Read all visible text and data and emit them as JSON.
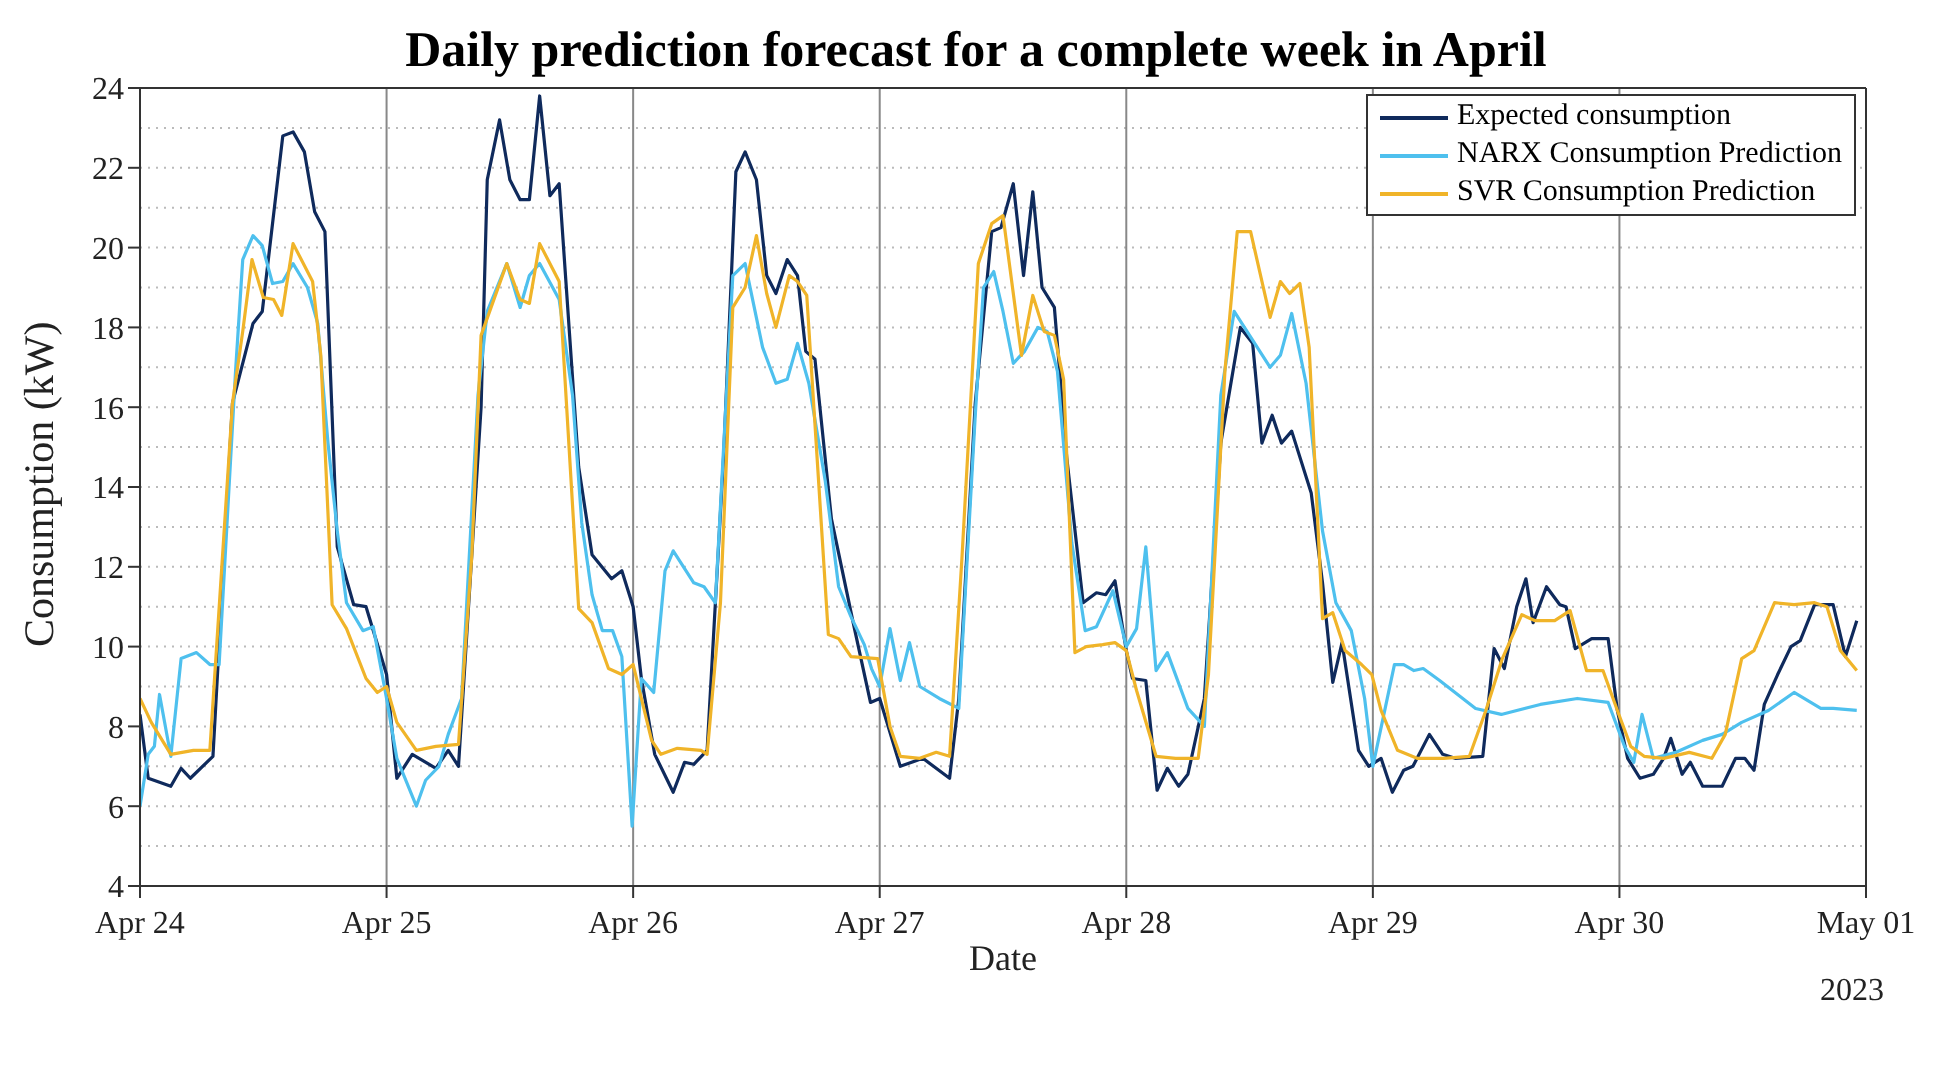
{
  "chart_data": {
    "type": "line",
    "title": "Daily prediction forecast for a complete week in April",
    "xlabel": "Date",
    "ylabel": "Consumption (kW)",
    "annotations": [
      "2023"
    ],
    "xlim": [
      "2023-04-24",
      "2023-05-01"
    ],
    "xticks": [
      {
        "value": "2023-04-24",
        "label": "Apr 24"
      },
      {
        "value": "2023-04-25",
        "label": "Apr 25"
      },
      {
        "value": "2023-04-26",
        "label": "Apr 26"
      },
      {
        "value": "2023-04-27",
        "label": "Apr 27"
      },
      {
        "value": "2023-04-28",
        "label": "Apr 28"
      },
      {
        "value": "2023-04-29",
        "label": "Apr 29"
      },
      {
        "value": "2023-04-30",
        "label": "Apr 30"
      },
      {
        "value": "2023-05-01",
        "label": "May 01"
      }
    ],
    "ylim": [
      4,
      24
    ],
    "yticks": [
      4,
      6,
      8,
      10,
      12,
      14,
      16,
      18,
      20,
      22,
      24
    ],
    "grid": true,
    "legend": "top right",
    "marker": "none",
    "line_style": "solid",
    "series": [
      {
        "name": "Expected consumption",
        "color": "#0f2a5c",
        "x": [
          "2023-04-24T00:00",
          "2023-04-24T00:48",
          "2023-04-24T03:00",
          "2023-04-24T04:00",
          "2023-04-24T04:54",
          "2023-04-24T07:06",
          "2023-04-24T09:00",
          "2023-04-24T11:00",
          "2023-04-24T11:54",
          "2023-04-24T13:54",
          "2023-04-24T14:54",
          "2023-04-24T16:00",
          "2023-04-24T17:00",
          "2023-04-24T18:00",
          "2023-04-24T19:12",
          "2023-04-24T20:48",
          "2023-04-24T22:00",
          "2023-04-25T00:00",
          "2023-04-25T01:00",
          "2023-04-25T02:30",
          "2023-04-25T04:48",
          "2023-04-25T06:00",
          "2023-04-25T07:00",
          "2023-04-25T09:12",
          "2023-04-25T09:48",
          "2023-04-25T11:00",
          "2023-04-25T12:00",
          "2023-04-25T13:00",
          "2023-04-25T13:54",
          "2023-04-25T14:54",
          "2023-04-25T15:54",
          "2023-04-25T16:48",
          "2023-04-25T18:42",
          "2023-04-25T20:00",
          "2023-04-25T21:54",
          "2023-04-25T22:54",
          "2023-04-26T00:00",
          "2023-04-26T00:48",
          "2023-04-26T02:06",
          "2023-04-26T03:54",
          "2023-04-26T05:00",
          "2023-04-26T05:54",
          "2023-04-26T07:12",
          "2023-04-26T08:48",
          "2023-04-26T10:00",
          "2023-04-26T10:54",
          "2023-04-26T12:00",
          "2023-04-26T13:00",
          "2023-04-26T13:54",
          "2023-04-26T15:00",
          "2023-04-26T16:00",
          "2023-04-26T16:48",
          "2023-04-26T17:42",
          "2023-04-26T19:18",
          "2023-04-26T21:30",
          "2023-04-26T23:06",
          "2023-04-27T00:00",
          "2023-04-27T02:00",
          "2023-04-27T04:12",
          "2023-04-27T06:48",
          "2023-04-27T07:42",
          "2023-04-27T09:18",
          "2023-04-27T10:54",
          "2023-04-27T11:48",
          "2023-04-27T13:00",
          "2023-04-27T14:00",
          "2023-04-27T14:54",
          "2023-04-27T15:48",
          "2023-04-27T17:00",
          "2023-04-27T18:12",
          "2023-04-27T19:48",
          "2023-04-27T21:06",
          "2023-04-27T22:00",
          "2023-04-27T22:54",
          "2023-04-28T00:00",
          "2023-04-28T00:36",
          "2023-04-28T01:54",
          "2023-04-28T03:00",
          "2023-04-28T04:00",
          "2023-04-28T05:06",
          "2023-04-28T06:00",
          "2023-04-28T07:36",
          "2023-04-28T09:12",
          "2023-04-28T11:06",
          "2023-04-28T12:18",
          "2023-04-28T13:12",
          "2023-04-28T14:12",
          "2023-04-28T15:06",
          "2023-04-28T16:06",
          "2023-04-28T18:00",
          "2023-04-28T19:06",
          "2023-04-28T20:06",
          "2023-04-28T21:00",
          "2023-04-28T22:36",
          "2023-04-28T23:36",
          "2023-04-29T00:48",
          "2023-04-29T01:54",
          "2023-04-29T03:00",
          "2023-04-29T03:54",
          "2023-04-29T05:30",
          "2023-04-29T06:48",
          "2023-04-29T08:00",
          "2023-04-29T10:42",
          "2023-04-29T11:48",
          "2023-04-29T12:48",
          "2023-04-29T14:00",
          "2023-04-29T14:54",
          "2023-04-29T15:36",
          "2023-04-29T16:54",
          "2023-04-29T18:12",
          "2023-04-29T18:48",
          "2023-04-29T19:42",
          "2023-04-29T21:18",
          "2023-04-29T22:54",
          "2023-04-29T23:48",
          "2023-04-30T00:48",
          "2023-04-30T02:00",
          "2023-04-30T03:18",
          "2023-04-30T04:18",
          "2023-04-30T05:00",
          "2023-04-30T06:06",
          "2023-04-30T06:54",
          "2023-04-30T08:06",
          "2023-04-30T10:00",
          "2023-04-30T11:18",
          "2023-04-30T12:12",
          "2023-04-30T13:06",
          "2023-04-30T14:06",
          "2023-04-30T15:24",
          "2023-04-30T16:42",
          "2023-04-30T17:36",
          "2023-04-30T19:00",
          "2023-04-30T20:48",
          "2023-04-30T22:00",
          "2023-04-30T23:06"
        ],
        "values": [
          8.3,
          6.7,
          6.5,
          6.95,
          6.7,
          7.25,
          16.1,
          18.1,
          18.4,
          22.8,
          22.9,
          22.4,
          20.9,
          20.4,
          12.5,
          11.05,
          11.0,
          9.3,
          6.7,
          7.3,
          6.95,
          7.4,
          7.0,
          16.0,
          21.7,
          23.2,
          21.7,
          21.2,
          21.2,
          23.8,
          21.3,
          21.6,
          14.5,
          12.3,
          11.7,
          11.9,
          11.0,
          9.2,
          7.3,
          6.35,
          7.1,
          7.05,
          7.4,
          14.75,
          21.9,
          22.4,
          21.7,
          19.3,
          18.85,
          19.7,
          19.3,
          17.4,
          17.2,
          13.2,
          10.5,
          8.6,
          8.7,
          7.0,
          7.2,
          6.7,
          8.7,
          16.1,
          20.4,
          20.5,
          21.6,
          19.3,
          21.4,
          19.0,
          18.5,
          14.75,
          11.1,
          11.35,
          11.3,
          11.65,
          9.9,
          9.2,
          9.15,
          6.4,
          6.95,
          6.5,
          6.8,
          8.7,
          15.1,
          18.0,
          17.6,
          15.1,
          15.8,
          15.1,
          15.4,
          13.85,
          11.6,
          9.1,
          10.1,
          7.4,
          7.0,
          7.2,
          6.35,
          6.9,
          7.0,
          7.8,
          7.3,
          7.2,
          7.25,
          9.95,
          9.45,
          11.0,
          11.7,
          10.6,
          11.5,
          11.05,
          11.0,
          9.95,
          10.2,
          10.2,
          8.4,
          7.2,
          6.7,
          6.8,
          7.2,
          7.7,
          6.8,
          7.1,
          6.5,
          6.5,
          7.2,
          7.2,
          6.9,
          8.55,
          9.3,
          10.0,
          10.15,
          11.05,
          11.05,
          9.75,
          10.65
        ]
      },
      {
        "name": "NARX Consumption Prediction",
        "color": "#4ec0ee",
        "x": [
          "2023-04-24T00:00",
          "2023-04-24T00:48",
          "2023-04-24T01:24",
          "2023-04-24T01:54",
          "2023-04-24T03:00",
          "2023-04-24T04:00",
          "2023-04-24T05:30",
          "2023-04-24T06:48",
          "2023-04-24T07:42",
          "2023-04-24T09:18",
          "2023-04-24T10:00",
          "2023-04-24T11:00",
          "2023-04-24T11:54",
          "2023-04-24T12:54",
          "2023-04-24T13:54",
          "2023-04-24T14:54",
          "2023-04-24T16:18",
          "2023-04-24T17:18",
          "2023-04-24T18:18",
          "2023-04-24T19:12",
          "2023-04-24T20:06",
          "2023-04-24T21:42",
          "2023-04-24T22:42",
          "2023-04-25T00:00",
          "2023-04-25T01:00",
          "2023-04-25T02:54",
          "2023-04-25T03:48",
          "2023-04-25T05:06",
          "2023-04-25T06:00",
          "2023-04-25T07:18",
          "2023-04-25T08:54",
          "2023-04-25T09:48",
          "2023-04-25T11:42",
          "2023-04-25T13:00",
          "2023-04-25T13:54",
          "2023-04-25T14:54",
          "2023-04-25T16:48",
          "2023-04-25T18:06",
          "2023-04-25T19:00",
          "2023-04-25T20:00",
          "2023-04-25T21:00",
          "2023-04-25T22:00",
          "2023-04-25T22:54",
          "2023-04-25T23:54",
          "2023-04-26T00:48",
          "2023-04-26T02:00",
          "2023-04-26T03:06",
          "2023-04-26T03:54",
          "2023-04-26T05:54",
          "2023-04-26T06:54",
          "2023-04-26T08:00",
          "2023-04-26T09:42",
          "2023-04-26T10:54",
          "2023-04-26T12:36",
          "2023-04-26T13:54",
          "2023-04-26T15:00",
          "2023-04-26T16:00",
          "2023-04-26T17:06",
          "2023-04-26T18:42",
          "2023-04-26T20:00",
          "2023-04-26T21:12",
          "2023-04-26T22:30",
          "2023-04-26T23:12",
          "2023-04-27T00:00",
          "2023-04-27T01:00",
          "2023-04-27T02:00",
          "2023-04-27T02:54",
          "2023-04-27T03:54",
          "2023-04-27T05:48",
          "2023-04-27T07:42",
          "2023-04-27T09:18",
          "2023-04-27T10:06",
          "2023-04-27T11:06",
          "2023-04-27T12:00",
          "2023-04-27T13:00",
          "2023-04-27T14:06",
          "2023-04-27T15:24",
          "2023-04-27T16:18",
          "2023-04-27T17:18",
          "2023-04-27T18:42",
          "2023-04-27T20:00",
          "2023-04-27T21:06",
          "2023-04-27T22:42",
          "2023-04-28T00:00",
          "2023-04-28T01:00",
          "2023-04-28T01:54",
          "2023-04-28T02:54",
          "2023-04-28T04:00",
          "2023-04-28T06:00",
          "2023-04-28T07:36",
          "2023-04-28T09:12",
          "2023-04-28T10:30",
          "2023-04-28T11:30",
          "2023-04-28T14:00",
          "2023-04-28T15:00",
          "2023-04-28T16:06",
          "2023-04-28T17:30",
          "2023-04-28T19:06",
          "2023-04-28T20:24",
          "2023-04-28T21:54",
          "2023-04-28T23:12",
          "2023-04-29T00:00",
          "2023-04-29T02:06",
          "2023-04-29T03:00",
          "2023-04-29T04:00",
          "2023-04-29T04:54",
          "2023-04-29T06:30",
          "2023-04-29T10:00",
          "2023-04-29T12:30",
          "2023-04-29T16:18",
          "2023-04-29T19:54",
          "2023-04-29T22:54",
          "2023-04-30T00:30",
          "2023-04-30T01:24",
          "2023-04-30T02:12",
          "2023-04-30T03:18",
          "2023-04-30T05:30",
          "2023-04-30T08:06",
          "2023-04-30T10:00",
          "2023-04-30T11:54",
          "2023-04-30T14:30",
          "2023-04-30T17:00",
          "2023-04-30T19:36",
          "2023-04-30T20:48",
          "2023-04-30T23:06"
        ],
        "values": [
          6.0,
          7.3,
          7.5,
          8.8,
          7.25,
          9.7,
          9.85,
          9.55,
          9.55,
          16.9,
          19.7,
          20.3,
          20.05,
          19.1,
          19.15,
          19.6,
          19.0,
          18.1,
          15.1,
          12.9,
          11.1,
          10.4,
          10.5,
          8.7,
          7.2,
          6.0,
          6.65,
          7.0,
          7.8,
          8.7,
          16.3,
          18.4,
          19.6,
          18.5,
          19.3,
          19.6,
          18.7,
          16.3,
          13.1,
          11.3,
          10.4,
          10.4,
          9.75,
          5.5,
          9.2,
          8.85,
          11.9,
          12.4,
          11.6,
          11.5,
          11.1,
          19.3,
          19.6,
          17.5,
          16.6,
          16.7,
          17.6,
          16.6,
          14.15,
          11.5,
          10.75,
          10.05,
          9.45,
          9.0,
          10.45,
          9.15,
          10.1,
          9.0,
          8.7,
          8.45,
          15.8,
          19.0,
          19.4,
          18.4,
          17.1,
          17.4,
          18.0,
          17.9,
          16.9,
          12.6,
          10.4,
          10.5,
          11.4,
          10.0,
          10.45,
          12.5,
          9.4,
          9.85,
          8.45,
          8.0,
          16.3,
          18.4,
          18.0,
          17.0,
          17.3,
          18.35,
          16.6,
          12.9,
          11.1,
          10.4,
          8.7,
          7.0,
          9.55,
          9.55,
          9.4,
          9.45,
          9.15,
          8.45,
          8.3,
          8.55,
          8.7,
          8.6,
          7.5,
          7.1,
          8.3,
          7.2,
          7.35,
          7.65,
          7.8,
          8.1,
          8.4,
          8.85,
          8.45,
          8.45,
          8.4
        ]
      },
      {
        "name": "SVR Consumption Prediction",
        "color": "#f0b429",
        "x": [
          "2023-04-24T00:00",
          "2023-04-24T01:06",
          "2023-04-24T03:00",
          "2023-04-24T05:12",
          "2023-04-24T06:48",
          "2023-04-24T09:00",
          "2023-04-24T10:00",
          "2023-04-24T10:54",
          "2023-04-24T12:00",
          "2023-04-24T13:00",
          "2023-04-24T13:48",
          "2023-04-24T14:54",
          "2023-04-24T16:48",
          "2023-04-24T17:36",
          "2023-04-24T18:42",
          "2023-04-24T20:06",
          "2023-04-24T22:00",
          "2023-04-24T23:06",
          "2023-04-25T00:00",
          "2023-04-25T01:00",
          "2023-04-25T02:54",
          "2023-04-25T04:48",
          "2023-04-25T07:00",
          "2023-04-25T08:18",
          "2023-04-25T09:12",
          "2023-04-25T11:42",
          "2023-04-25T13:00",
          "2023-04-25T13:54",
          "2023-04-25T14:54",
          "2023-04-25T16:48",
          "2023-04-25T18:42",
          "2023-04-25T20:00",
          "2023-04-25T21:36",
          "2023-04-25T22:54",
          "2023-04-26T00:00",
          "2023-04-26T01:48",
          "2023-04-26T02:42",
          "2023-04-26T04:18",
          "2023-04-26T06:36",
          "2023-04-26T07:12",
          "2023-04-26T08:30",
          "2023-04-26T09:42",
          "2023-04-26T10:54",
          "2023-04-26T12:00",
          "2023-04-26T13:00",
          "2023-04-26T13:54",
          "2023-04-26T15:12",
          "2023-04-26T16:00",
          "2023-04-26T16:54",
          "2023-04-26T19:00",
          "2023-04-26T20:00",
          "2023-04-26T21:12",
          "2023-04-26T23:48",
          "2023-04-27T01:00",
          "2023-04-27T02:00",
          "2023-04-27T03:54",
          "2023-04-27T05:30",
          "2023-04-27T06:48",
          "2023-04-27T08:00",
          "2023-04-27T09:36",
          "2023-04-27T10:54",
          "2023-04-27T12:00",
          "2023-04-27T13:48",
          "2023-04-27T14:54",
          "2023-04-27T16:00",
          "2023-04-27T17:00",
          "2023-04-27T17:54",
          "2023-04-27T19:00",
          "2023-04-27T20:06",
          "2023-04-27T21:42",
          "2023-04-27T22:54",
          "2023-04-28T00:00",
          "2023-04-28T01:00",
          "2023-04-28T02:54",
          "2023-04-28T04:48",
          "2023-04-28T07:00",
          "2023-04-28T08:00",
          "2023-04-28T09:36",
          "2023-04-28T10:48",
          "2023-04-28T12:06",
          "2023-04-28T14:00",
          "2023-04-28T15:00",
          "2023-04-28T15:54",
          "2023-04-28T16:54",
          "2023-04-28T17:48",
          "2023-04-28T19:06",
          "2023-04-28T20:06",
          "2023-04-28T21:18",
          "2023-04-28T22:54",
          "2023-04-28T23:54",
          "2023-04-29T00:48",
          "2023-04-29T02:24",
          "2023-04-29T04:18",
          "2023-04-29T06:54",
          "2023-04-29T09:24",
          "2023-04-29T11:00",
          "2023-04-29T12:36",
          "2023-04-29T14:30",
          "2023-04-29T15:48",
          "2023-04-29T17:42",
          "2023-04-29T19:12",
          "2023-04-29T20:48",
          "2023-04-29T22:24",
          "2023-04-29T23:48",
          "2023-04-30T01:06",
          "2023-04-30T02:24",
          "2023-04-30T04:18",
          "2023-04-30T06:48",
          "2023-04-30T09:00",
          "2023-04-30T10:18",
          "2023-04-30T11:54",
          "2023-04-30T13:06",
          "2023-04-30T15:06",
          "2023-04-30T17:00",
          "2023-04-30T19:00",
          "2023-04-30T20:12",
          "2023-04-30T21:30",
          "2023-04-30T23:06"
        ],
        "values": [
          8.7,
          8.1,
          7.3,
          7.4,
          7.4,
          16.1,
          17.9,
          19.7,
          18.75,
          18.7,
          18.3,
          20.1,
          19.15,
          17.3,
          11.05,
          10.45,
          9.2,
          8.85,
          9.0,
          8.1,
          7.4,
          7.5,
          7.55,
          12.3,
          17.8,
          19.6,
          18.7,
          18.6,
          20.1,
          19.15,
          10.95,
          10.6,
          9.45,
          9.3,
          9.55,
          7.65,
          7.3,
          7.45,
          7.4,
          7.3,
          11.1,
          18.5,
          19.0,
          20.3,
          18.85,
          18.0,
          19.3,
          19.15,
          18.8,
          10.3,
          10.2,
          9.75,
          9.7,
          8.0,
          7.25,
          7.2,
          7.35,
          7.25,
          12.2,
          19.6,
          20.6,
          20.8,
          17.3,
          18.8,
          17.9,
          17.8,
          16.7,
          9.85,
          10.0,
          10.05,
          10.1,
          9.9,
          8.9,
          7.25,
          7.2,
          7.2,
          9.3,
          16.9,
          20.4,
          20.4,
          18.25,
          19.15,
          18.85,
          19.1,
          17.5,
          10.7,
          10.85,
          9.9,
          9.55,
          9.3,
          8.4,
          7.4,
          7.2,
          7.2,
          7.25,
          8.4,
          9.7,
          10.8,
          10.65,
          10.65,
          10.9,
          9.4,
          9.4,
          8.4,
          7.5,
          7.25,
          7.2,
          7.35,
          7.2,
          7.8,
          9.7,
          9.9,
          11.1,
          11.05,
          11.1,
          11.0,
          9.9,
          9.4
        ]
      }
    ]
  }
}
